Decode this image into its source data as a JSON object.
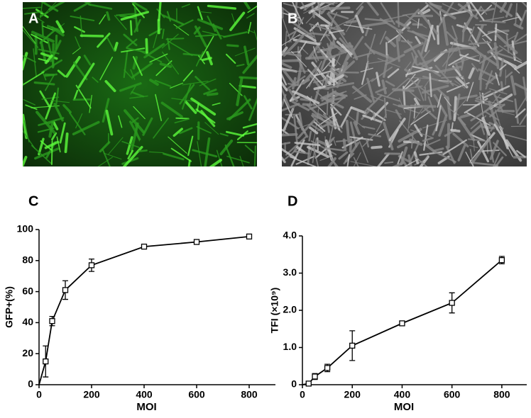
{
  "images": [
    {
      "label": "A"
    },
    {
      "label": "B"
    }
  ],
  "chart_data": [
    {
      "type": "line",
      "panel_label": "C",
      "xlabel": "MOI",
      "ylabel": "GFP+(%)",
      "x": [
        0,
        25,
        50,
        100,
        200,
        400,
        600,
        800
      ],
      "values": [
        0,
        15,
        41,
        61,
        77,
        89,
        92,
        95.5
      ],
      "errors": [
        0,
        10,
        3,
        6,
        4,
        1,
        1,
        1
      ],
      "color": "#000000",
      "xlim": [
        0,
        900
      ],
      "xticks": [
        0,
        200,
        400,
        600,
        800
      ],
      "ylim": [
        0,
        100
      ],
      "yticks": [
        0,
        20,
        40,
        60,
        80,
        100
      ]
    },
    {
      "type": "line",
      "panel_label": "D",
      "xlabel": "MOI",
      "ylabel": "TFI (×10⁹)",
      "x": [
        0,
        25,
        50,
        100,
        200,
        400,
        600,
        800
      ],
      "values": [
        0,
        0.03,
        0.22,
        0.45,
        1.05,
        1.65,
        2.2,
        3.35
      ],
      "errors": [
        0,
        0.03,
        0.08,
        0.1,
        0.4,
        0.05,
        0.27,
        0.1
      ],
      "color": "#000000",
      "xlim": [
        0,
        900
      ],
      "xticks": [
        0,
        200,
        400,
        600,
        800
      ],
      "ylim": [
        0,
        4
      ],
      "yticks": [
        0,
        {
          "value": 1,
          "label": "1.0"
        },
        {
          "value": 2,
          "label": "2.0"
        },
        {
          "value": 3,
          "label": "3.0"
        },
        {
          "value": 4,
          "label": "4.0"
        }
      ]
    }
  ]
}
